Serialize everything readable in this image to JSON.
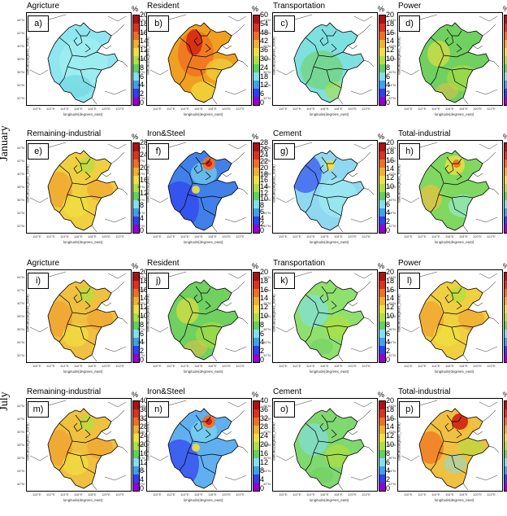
{
  "months": [
    "January",
    "July"
  ],
  "rows": [
    [
      {
        "tag": "a)",
        "title": "Agricture",
        "unit": "%",
        "scale": [
          0,
          2,
          4,
          6,
          8,
          10,
          12,
          14,
          16,
          18,
          20
        ],
        "dominant": "#8fe6f0",
        "mix": "cool-uniform"
      },
      {
        "tag": "b)",
        "title": "Resident",
        "unit": "%",
        "scale": [
          0,
          6,
          12,
          18,
          24,
          30,
          36,
          42,
          48,
          54,
          60
        ],
        "dominant": "#f0a020",
        "mix": "warm-hot"
      },
      {
        "tag": "c)",
        "title": "Transportation",
        "unit": "%",
        "scale": [
          0,
          2,
          4,
          6,
          8,
          10,
          12,
          14,
          16,
          18,
          20
        ],
        "dominant": "#7fe0e0",
        "mix": "cool-green"
      },
      {
        "tag": "d)",
        "title": "Power",
        "unit": "%",
        "scale": [
          0,
          2,
          4,
          6,
          8,
          10,
          12,
          14,
          16,
          18,
          20
        ],
        "dominant": "#70d060",
        "mix": "green"
      }
    ],
    [
      {
        "tag": "e)",
        "title": "Remaining-industrial",
        "unit": "%",
        "scale": [
          0,
          4,
          8,
          12,
          16,
          20,
          24,
          28
        ],
        "dominant": "#f0d040",
        "mix": "yellow-orange"
      },
      {
        "tag": "f)",
        "title": "Iron&Steel",
        "unit": "%",
        "scale": [
          0,
          2,
          4,
          6,
          8,
          10,
          12,
          14,
          16,
          18,
          20,
          22,
          24,
          26,
          28
        ],
        "dominant": "#4080e8",
        "mix": "blue-hot"
      },
      {
        "tag": "g)",
        "title": "Cement",
        "unit": "%",
        "scale": [
          0,
          2,
          4,
          6,
          8,
          10,
          12,
          14,
          16,
          18,
          20
        ],
        "dominant": "#8fd8f0",
        "mix": "blue-cyan"
      },
      {
        "tag": "h)",
        "title": "Total-industrial",
        "unit": "%",
        "scale": [
          0,
          6,
          12,
          18,
          24,
          30,
          36,
          42,
          48,
          54,
          60
        ],
        "dominant": "#80d860",
        "mix": "green-yellow"
      }
    ],
    [
      {
        "tag": "i)",
        "title": "Agricture",
        "unit": "%",
        "scale": [
          0,
          2,
          4,
          6,
          8,
          10,
          12,
          14,
          16,
          18,
          20
        ],
        "dominant": "#f0c040",
        "mix": "yellow-orange"
      },
      {
        "tag": "j)",
        "title": "Resident",
        "unit": "%",
        "scale": [
          0,
          2,
          4,
          6,
          8,
          10,
          12,
          14,
          16,
          18,
          20
        ],
        "dominant": "#70d060",
        "mix": "green"
      },
      {
        "tag": "k)",
        "title": "Transportation",
        "unit": "%",
        "scale": [
          0,
          2,
          4,
          6,
          8,
          10,
          12,
          14,
          16,
          18,
          20
        ],
        "dominant": "#90e070",
        "mix": "green-cyan"
      },
      {
        "tag": "l)",
        "title": "Power",
        "unit": "%",
        "scale": [
          0,
          2,
          4,
          6,
          8,
          10,
          12,
          14,
          16,
          18,
          20
        ],
        "dominant": "#f0d040",
        "mix": "yellow-orange"
      }
    ],
    [
      {
        "tag": "m)",
        "title": "Remaining-industrial",
        "unit": "%",
        "scale": [
          0,
          4,
          8,
          12,
          16,
          20,
          24,
          28,
          32,
          36,
          40
        ],
        "dominant": "#f0c040",
        "mix": "yellow-orange"
      },
      {
        "tag": "n)",
        "title": "Iron&Steel",
        "unit": "%",
        "scale": [
          0,
          4,
          8,
          12,
          16,
          20,
          24,
          28,
          32,
          36,
          40
        ],
        "dominant": "#60b0f0",
        "mix": "blue-hot"
      },
      {
        "tag": "o)",
        "title": "Cement",
        "unit": "%",
        "scale": [
          0,
          2,
          4,
          6,
          8,
          10,
          12,
          14,
          16,
          18,
          20
        ],
        "dominant": "#80d870",
        "mix": "green-cyan"
      },
      {
        "tag": "p)",
        "title": "Total-industrial",
        "unit": "%",
        "scale": [
          0,
          6,
          12,
          18,
          24,
          30,
          36,
          42,
          48,
          54,
          60
        ],
        "dominant": "#f0c040",
        "mix": "yellow-hot"
      }
    ]
  ],
  "axes": {
    "xlabel": "longitude(degrees_east)",
    "ylabel": "latitude(degrees_north)",
    "xticks": [
      "110°E",
      "112°E",
      "114°E",
      "116°E",
      "118°E",
      "120°E",
      "122°E"
    ],
    "yticks": [
      "44°N",
      "42°N",
      "40°N",
      "38°N",
      "36°N",
      "34°N",
      "32°N"
    ]
  },
  "colormap": [
    "#9400d3",
    "#3040f0",
    "#40a0f0",
    "#80e0f0",
    "#60d060",
    "#b0e040",
    "#f0e040",
    "#f0b030",
    "#f07020",
    "#e03020",
    "#b01010"
  ]
}
